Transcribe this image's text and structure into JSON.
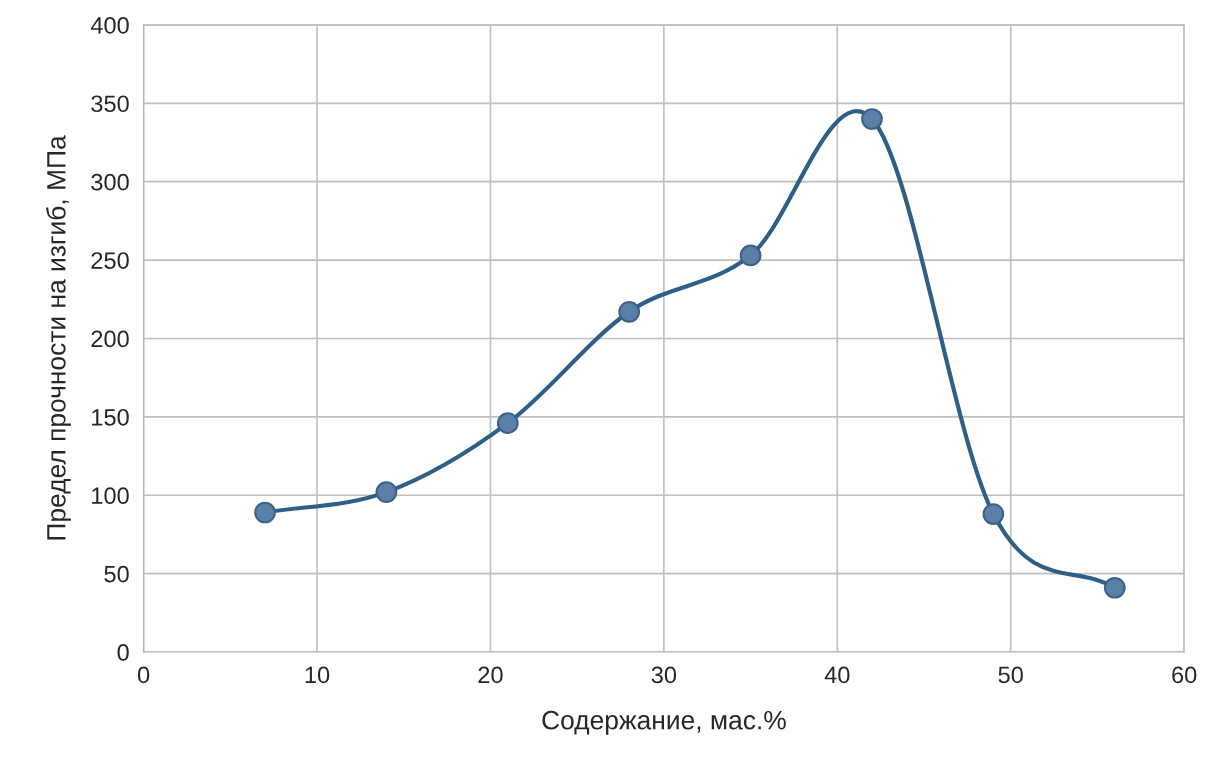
{
  "chart_data": {
    "type": "line",
    "xlabel": "Содержание, мас.%",
    "ylabel": "Предел прочности на изгиб, МПа",
    "x": [
      7,
      14,
      21,
      28,
      35,
      42,
      49,
      56
    ],
    "series": [
      {
        "color": "#2e6087",
        "values": [
          89,
          102,
          146,
          217,
          253,
          340,
          88,
          41
        ]
      }
    ],
    "xlim": [
      0,
      60
    ],
    "xticks": [
      0,
      10,
      20,
      30,
      40,
      50,
      60
    ],
    "ylim": [
      0,
      400
    ],
    "yticks": [
      0,
      50,
      100,
      150,
      200,
      250,
      300,
      350,
      400
    ],
    "grid": true,
    "marker": "circle",
    "line_style": "solid"
  }
}
